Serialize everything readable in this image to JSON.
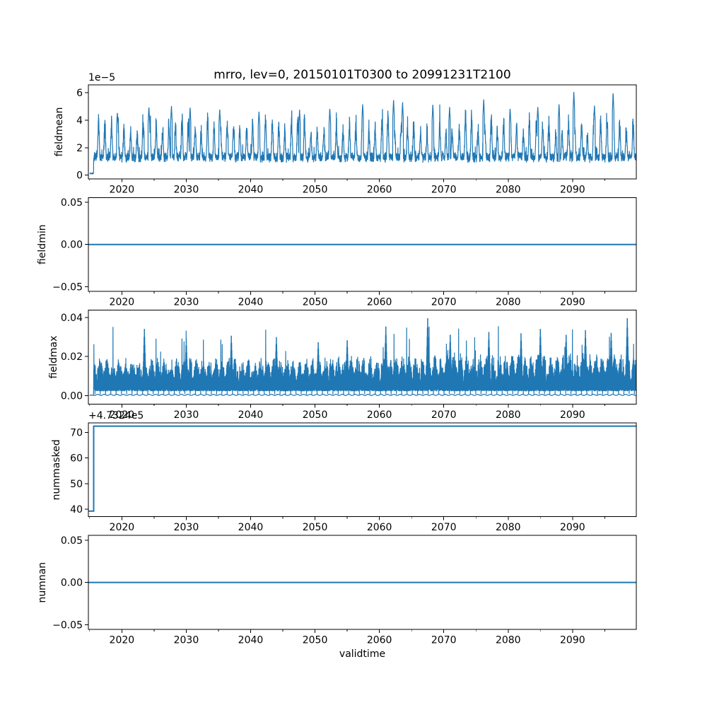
{
  "title": "mrro, lev=0, 20150101T0300 to 20991231T2100",
  "xlabel": "validtime",
  "line_color": "#1f77b4",
  "background_color": "#ffffff",
  "axis_color": "#000000",
  "x_axis": {
    "lim": [
      2014.8,
      2099.9
    ],
    "major_ticks": [
      2020,
      2030,
      2040,
      2050,
      2060,
      2070,
      2080,
      2090
    ],
    "major_tick_labels": [
      "2020",
      "2030",
      "2040",
      "2050",
      "2060",
      "2070",
      "2080",
      "2090"
    ],
    "minor_ticks": [
      2015,
      2025,
      2035,
      2045,
      2055,
      2065,
      2075,
      2085,
      2095
    ],
    "tick_labels_under_every_subplot": true
  },
  "chart_data": [
    {
      "type": "line",
      "ylabel": "fieldmean",
      "scale_text": "1e−5",
      "ylim": [
        -0.26,
        6.57
      ],
      "yticks": [
        0,
        2,
        4,
        6
      ],
      "ytick_labels": [
        "0",
        "2",
        "4",
        "6"
      ],
      "series": {
        "kind": "seasonal_noise",
        "seed": 42,
        "points_per_year": 48,
        "start_until": 2015.62,
        "start_value": 0.11,
        "base_range": [
          0.95,
          1.45
        ],
        "peak_amp_range": [
          2.0,
          3.6
        ],
        "noise": 0.35,
        "value_max": 6.2,
        "spikes": [
          [
            2019.3,
            4.6
          ],
          [
            2024.2,
            5.0
          ],
          [
            2027.7,
            5.1
          ],
          [
            2030.6,
            4.95
          ],
          [
            2035.2,
            4.85
          ],
          [
            2041.3,
            4.7
          ],
          [
            2047.6,
            4.8
          ],
          [
            2052.3,
            4.9
          ],
          [
            2057.4,
            5.2
          ],
          [
            2062.2,
            5.55
          ],
          [
            2063.6,
            5.35
          ],
          [
            2068.3,
            5.2
          ],
          [
            2070.9,
            5.0
          ],
          [
            2076.2,
            5.6
          ],
          [
            2080.3,
            4.9
          ],
          [
            2084.6,
            5.0
          ],
          [
            2087.9,
            5.2
          ],
          [
            2090.2,
            6.15
          ],
          [
            2093.4,
            5.1
          ],
          [
            2096.3,
            6.05
          ]
        ]
      }
    },
    {
      "type": "line",
      "ylabel": "fieldmin",
      "ylim": [
        -0.0555,
        0.0555
      ],
      "yticks": [
        -0.05,
        0.0,
        0.05
      ],
      "ytick_labels": [
        "−0.05",
        "0.00",
        "0.05"
      ],
      "series": {
        "kind": "flat",
        "value": 0.0
      }
    },
    {
      "type": "line",
      "ylabel": "fieldmax",
      "ylim": [
        -0.0043,
        0.0437
      ],
      "yticks": [
        0.0,
        0.02,
        0.04
      ],
      "ytick_labels": [
        "0.00",
        "0.02",
        "0.04"
      ],
      "series": {
        "kind": "spiky_mass",
        "seed": 7,
        "points_per_year": 56,
        "start_until": 2015.6,
        "start_value": 0.0002,
        "low_band": [
          0.0022,
          0.0034
        ],
        "top_base": 0.005,
        "top_var": 0.0148,
        "spike_prob": 0.012,
        "spike_range": [
          0.022,
          0.036
        ],
        "value_max": 0.0428,
        "spikes": [
          [
            2023.5,
            0.0362
          ],
          [
            2030.0,
            0.031
          ],
          [
            2037.0,
            0.0325
          ],
          [
            2044.0,
            0.0318
          ],
          [
            2050.5,
            0.029
          ],
          [
            2055.0,
            0.03
          ],
          [
            2061.0,
            0.0375
          ],
          [
            2067.5,
            0.042
          ],
          [
            2071.0,
            0.033
          ],
          [
            2077.0,
            0.0345
          ],
          [
            2082.0,
            0.0338
          ],
          [
            2085.0,
            0.0362
          ],
          [
            2089.0,
            0.033
          ],
          [
            2092.0,
            0.0355
          ],
          [
            2096.0,
            0.034
          ],
          [
            2098.5,
            0.042
          ]
        ],
        "bottom_line": {
          "base": 0.00036,
          "amp": 0.0003,
          "noise": 7e-05,
          "points_per_year": 24
        }
      }
    },
    {
      "type": "line",
      "ylabel": "nummasked",
      "offset_text": "+4.7324e5",
      "ylim": [
        37.0,
        73.8
      ],
      "yticks": [
        40,
        50,
        60,
        70
      ],
      "ytick_labels": [
        "40",
        "50",
        "60",
        "70"
      ],
      "series": {
        "kind": "step",
        "points": [
          [
            2014.8,
            39.2
          ],
          [
            2015.62,
            39.2
          ],
          [
            2015.62,
            72.5
          ],
          [
            2099.9,
            72.5
          ]
        ]
      }
    },
    {
      "type": "line",
      "ylabel": "numnan",
      "ylim": [
        -0.0555,
        0.0555
      ],
      "yticks": [
        -0.05,
        0.0,
        0.05
      ],
      "ytick_labels": [
        "−0.05",
        "0.00",
        "0.05"
      ],
      "series": {
        "kind": "flat",
        "value": 0.0
      }
    }
  ]
}
